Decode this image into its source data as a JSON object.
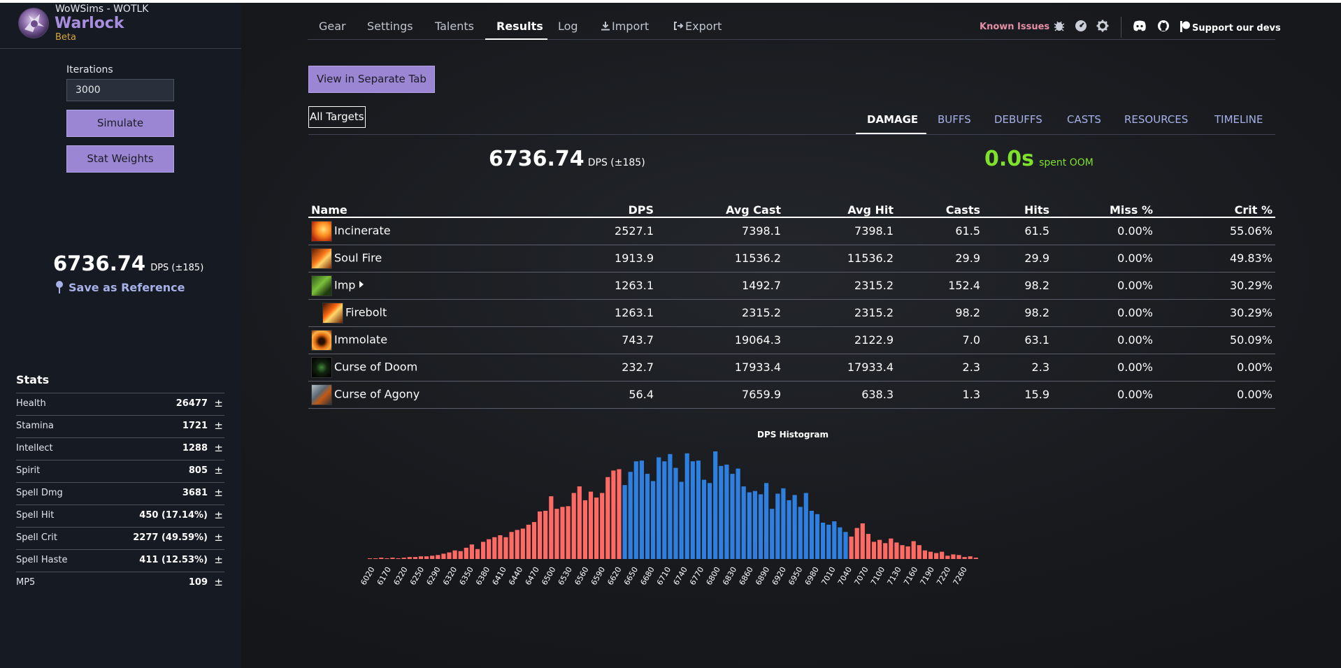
{
  "app": {
    "subtitle": "WoWSims - WOTLK",
    "title": "Warlock",
    "badge": "Beta"
  },
  "sidebar": {
    "iterations_label": "Iterations",
    "iterations_value": "3000",
    "simulate_label": "Simulate",
    "stat_weights_label": "Stat Weights",
    "dps_value": "6736.74",
    "dps_unit": "DPS (±185)",
    "save_reference_label": "Save as Reference",
    "stats_title": "Stats",
    "stats": [
      {
        "name": "Health",
        "value": "26477",
        "pm": "±"
      },
      {
        "name": "Stamina",
        "value": "1721",
        "pm": "±"
      },
      {
        "name": "Intellect",
        "value": "1288",
        "pm": "±"
      },
      {
        "name": "Spirit",
        "value": "805",
        "pm": "±"
      },
      {
        "name": "Spell Dmg",
        "value": "3681",
        "pm": "±"
      },
      {
        "name": "Spell Hit",
        "value": "450 (17.14%)",
        "pm": "±"
      },
      {
        "name": "Spell Crit",
        "value": "2277 (49.59%)",
        "pm": "±"
      },
      {
        "name": "Spell Haste",
        "value": "411 (12.53%)",
        "pm": "±"
      },
      {
        "name": "MP5",
        "value": "109",
        "pm": "±"
      }
    ]
  },
  "nav": {
    "tabs": [
      "Gear",
      "Settings",
      "Talents",
      "Results",
      "Log",
      "Import",
      "Export"
    ],
    "active_tab": "Results",
    "known_issues": "Known Issues",
    "support": "Support our devs",
    "icons": [
      "bug-icon",
      "gauge-icon",
      "gear-icon",
      "discord-icon",
      "github-icon",
      "patreon-icon"
    ]
  },
  "results": {
    "view_separate_tab": "View in Separate Tab",
    "all_targets": "All Targets",
    "subtabs": [
      "DAMAGE",
      "BUFFS",
      "DEBUFFS",
      "CASTS",
      "RESOURCES",
      "TIMELINE"
    ],
    "active_subtab": "DAMAGE",
    "dps_value": "6736.74",
    "dps_unit": "DPS (±185)",
    "oom_value": "0.0s",
    "oom_label": "spent OOM",
    "columns": [
      "Name",
      "DPS",
      "Avg Cast",
      "Avg Hit",
      "Casts",
      "Hits",
      "Miss %",
      "Crit %"
    ],
    "rows": [
      {
        "name": "Incinerate",
        "dps": "2527.1",
        "avg_cast": "7398.1",
        "avg_hit": "7398.1",
        "casts": "61.5",
        "hits": "61.5",
        "miss": "0.00%",
        "crit": "55.06%",
        "icon": "incinerate-icon"
      },
      {
        "name": "Soul Fire",
        "dps": "1913.9",
        "avg_cast": "11536.2",
        "avg_hit": "11536.2",
        "casts": "29.9",
        "hits": "29.9",
        "miss": "0.00%",
        "crit": "49.83%",
        "icon": "soul-fire-icon"
      },
      {
        "name": "Imp",
        "dps": "1263.1",
        "avg_cast": "1492.7",
        "avg_hit": "2315.2",
        "casts": "152.4",
        "hits": "98.2",
        "miss": "0.00%",
        "crit": "30.29%",
        "icon": "imp-icon"
      },
      {
        "name": "Firebolt",
        "dps": "1263.1",
        "avg_cast": "2315.2",
        "avg_hit": "2315.2",
        "casts": "98.2",
        "hits": "98.2",
        "miss": "0.00%",
        "crit": "30.29%",
        "icon": "firebolt-icon"
      },
      {
        "name": "Immolate",
        "dps": "743.7",
        "avg_cast": "19064.3",
        "avg_hit": "2122.9",
        "casts": "7.0",
        "hits": "63.1",
        "miss": "0.00%",
        "crit": "50.09%",
        "icon": "immolate-icon"
      },
      {
        "name": "Curse of Doom",
        "dps": "232.7",
        "avg_cast": "17933.4",
        "avg_hit": "17933.4",
        "casts": "2.3",
        "hits": "2.3",
        "miss": "0.00%",
        "crit": "0.00%",
        "icon": "curse-of-doom-icon"
      },
      {
        "name": "Curse of Agony",
        "dps": "56.4",
        "avg_cast": "7659.9",
        "avg_hit": "638.3",
        "casts": "1.3",
        "hits": "15.9",
        "miss": "0.00%",
        "crit": "0.00%",
        "icon": "curse-of-agony-icon"
      }
    ]
  },
  "chart_data": {
    "type": "bar",
    "title": "DPS Histogram",
    "x_tick_labels": [
      "6020",
      "6170",
      "6220",
      "6250",
      "6290",
      "6320",
      "6350",
      "6380",
      "6410",
      "6440",
      "6470",
      "6500",
      "6530",
      "6560",
      "6590",
      "6620",
      "6650",
      "6680",
      "6710",
      "6740",
      "6770",
      "6800",
      "6830",
      "6860",
      "6890",
      "6920",
      "6950",
      "6980",
      "7010",
      "7040",
      "7070",
      "7100",
      "7130",
      "7160",
      "7190",
      "7220",
      "7260"
    ],
    "values": [
      1,
      1,
      2,
      1,
      2,
      1,
      2,
      3,
      3,
      4,
      4,
      5,
      6,
      8,
      10,
      13,
      12,
      17,
      22,
      15,
      26,
      30,
      33,
      36,
      33,
      41,
      44,
      46,
      52,
      56,
      72,
      73,
      95,
      76,
      79,
      80,
      100,
      110,
      89,
      102,
      93,
      100,
      124,
      134,
      136,
      112,
      132,
      148,
      149,
      129,
      118,
      154,
      148,
      159,
      138,
      117,
      160,
      148,
      149,
      120,
      115,
      163,
      141,
      143,
      129,
      137,
      110,
      101,
      103,
      98,
      115,
      76,
      99,
      107,
      89,
      97,
      79,
      100,
      73,
      68,
      55,
      52,
      57,
      48,
      41,
      34,
      47,
      54,
      38,
      26,
      29,
      24,
      31,
      25,
      21,
      19,
      27,
      21,
      13,
      11,
      9,
      11,
      5,
      7,
      6,
      3,
      4,
      2
    ],
    "series_colors": {
      "outside": "#ff6b64",
      "within_std": "#2d7fe0"
    },
    "blue_range": [
      45,
      84
    ]
  }
}
